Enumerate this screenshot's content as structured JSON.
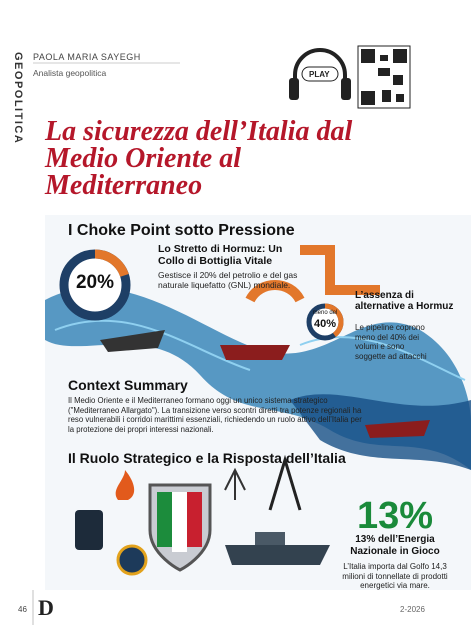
{
  "sidebar": "GEOPOLITICA",
  "author": {
    "name": "PAOLA MARIA SAYEGH",
    "role": "Analista geopolitica"
  },
  "audio": "PLAY",
  "title": "La sicurezza dell’Italia dal Medio Oriente al Mediterraneo",
  "infographic": {
    "heading": "I Choke Point sotto Pressione",
    "hormuz": {
      "share": {
        "value": 20,
        "label": "20%"
      },
      "title": "Lo Stretto di Hormuz: Un Collo di Bottiglia Vitale",
      "text": "Gestisce il 20% del petrolio e del gas naturale liquefatto (GNL) mondiale."
    },
    "alternatives": {
      "prefix": "meno del",
      "share": {
        "value": 40,
        "label": "40%"
      },
      "title": "L’assenza di alternative a Hormuz",
      "text": "Le pipeline coprono meno del 40% dei volumi e sono soggette ad attacchi"
    },
    "context": {
      "title": "Context Summary",
      "text": "Il Medio Oriente e il Mediterraneo formano oggi un unico sistema strategico (\"Mediterraneo Allargato\"). La transizione verso scontri diretti tra potenze regionali ha reso vulnerabili i corridoi marittimi essenziali, richiedendo un ruolo attivo dell’Italia per la protezione dei propri interessi nazionali."
    },
    "section": "Il Ruolo Strategico e la Risposta dell’Italia",
    "stat": {
      "value": "13%",
      "label": "13% dell’Energia Nazionale in Gioco",
      "text": "L’Italia importa dal Golfo 14,3 milioni di tonnellate di prodotti energetici via mare."
    }
  },
  "footer": {
    "page": "46",
    "logo": "D",
    "issue": "2-2026"
  }
}
